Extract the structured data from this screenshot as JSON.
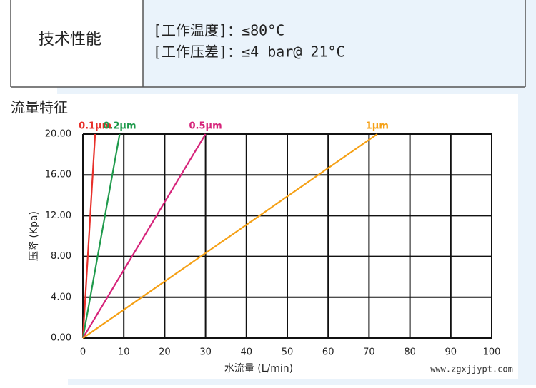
{
  "spec": {
    "label": "技术性能",
    "lines": [
      "[工作温度]：≤80°C",
      "[工作压差]：≤4 bar@ 21°C"
    ]
  },
  "section_title": "流量特征",
  "watermark": "www.zgxjjypt.com",
  "chart_data": {
    "type": "line",
    "x_label": "水流量 (L/min)",
    "y_label": "压降 (Kpa)",
    "series": [
      {
        "name": "0.1μm",
        "color": "#e8312b",
        "x": [
          0,
          3
        ],
        "values": [
          0,
          20
        ]
      },
      {
        "name": "0.2μm",
        "color": "#1f9a4c",
        "x": [
          0,
          9
        ],
        "values": [
          0,
          20
        ]
      },
      {
        "name": "0.5μm",
        "color": "#d6237a",
        "x": [
          0,
          30
        ],
        "values": [
          0,
          20
        ]
      },
      {
        "name": "1μm",
        "color": "#f5a015",
        "x": [
          0,
          72
        ],
        "values": [
          0,
          20
        ]
      }
    ],
    "xlim": [
      0,
      100
    ],
    "xticks": [
      0,
      10,
      20,
      30,
      40,
      50,
      60,
      70,
      80,
      90,
      100
    ],
    "ylim": [
      0,
      20
    ],
    "yticks": [
      {
        "value": 0,
        "label": "0.00"
      },
      {
        "value": 4,
        "label": "4.00"
      },
      {
        "value": 8,
        "label": "8.00"
      },
      {
        "value": 12,
        "label": "12.00"
      },
      {
        "value": 16,
        "label": "16.00"
      },
      {
        "value": 20,
        "label": "20.00"
      }
    ],
    "grid": true
  }
}
